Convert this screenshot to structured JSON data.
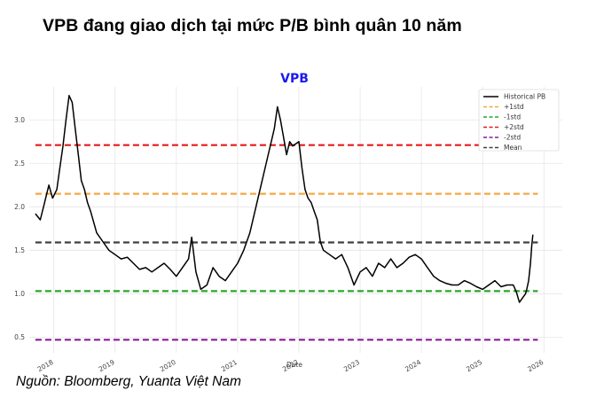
{
  "headline": "VPB đang giao dịch tại mức P/B bình quân 10 năm",
  "source": "Nguồn: Bloomberg, Yuanta Việt Nam",
  "chart_data": {
    "type": "line",
    "title": "VPB",
    "xlabel": "Date",
    "ylabel": "",
    "xlim": [
      2017.6,
      2026.3
    ],
    "ylim": [
      0.32,
      3.38
    ],
    "x_ticks": [
      "2018",
      "2019",
      "2020",
      "2021",
      "2022",
      "2023",
      "2024",
      "2025",
      "2026"
    ],
    "y_ticks": [
      "0.5",
      "1.0",
      "1.5",
      "2.0",
      "2.5",
      "3.0"
    ],
    "grid": true,
    "legend_position": "top-right",
    "series": [
      {
        "name": "Historical PB",
        "color": "#000000",
        "style": "solid",
        "x": [
          2017.7,
          2017.78,
          2017.85,
          2017.92,
          2017.98,
          2018.05,
          2018.1,
          2018.15,
          2018.2,
          2018.25,
          2018.3,
          2018.35,
          2018.4,
          2018.45,
          2018.5,
          2018.55,
          2018.6,
          2018.7,
          2018.8,
          2018.9,
          2019.0,
          2019.1,
          2019.2,
          2019.3,
          2019.4,
          2019.5,
          2019.6,
          2019.7,
          2019.8,
          2019.9,
          2020.0,
          2020.1,
          2020.2,
          2020.25,
          2020.32,
          2020.4,
          2020.5,
          2020.6,
          2020.7,
          2020.8,
          2020.9,
          2021.0,
          2021.1,
          2021.2,
          2021.3,
          2021.4,
          2021.5,
          2021.6,
          2021.65,
          2021.7,
          2021.75,
          2021.8,
          2021.85,
          2021.9,
          2022.0,
          2022.05,
          2022.1,
          2022.15,
          2022.2,
          2022.25,
          2022.3,
          2022.35,
          2022.4,
          2022.5,
          2022.6,
          2022.7,
          2022.8,
          2022.9,
          2023.0,
          2023.1,
          2023.2,
          2023.3,
          2023.4,
          2023.5,
          2023.6,
          2023.7,
          2023.8,
          2023.9,
          2024.0,
          2024.1,
          2024.2,
          2024.3,
          2024.4,
          2024.5,
          2024.6,
          2024.7,
          2024.8,
          2024.9,
          2025.0,
          2025.1,
          2025.2,
          2025.3,
          2025.4,
          2025.5,
          2025.55,
          2025.6,
          2025.65,
          2025.7,
          2025.72,
          2025.75,
          2025.78,
          2025.8,
          2025.82
        ],
        "values": [
          1.92,
          1.85,
          2.05,
          2.25,
          2.1,
          2.2,
          2.45,
          2.7,
          3.0,
          3.28,
          3.2,
          2.9,
          2.6,
          2.3,
          2.2,
          2.05,
          1.95,
          1.7,
          1.6,
          1.5,
          1.45,
          1.4,
          1.42,
          1.35,
          1.28,
          1.3,
          1.25,
          1.3,
          1.35,
          1.28,
          1.2,
          1.3,
          1.4,
          1.65,
          1.25,
          1.05,
          1.1,
          1.3,
          1.2,
          1.15,
          1.25,
          1.35,
          1.5,
          1.7,
          2.0,
          2.3,
          2.6,
          2.9,
          3.15,
          3.0,
          2.8,
          2.6,
          2.75,
          2.7,
          2.75,
          2.45,
          2.2,
          2.1,
          2.05,
          1.95,
          1.85,
          1.6,
          1.5,
          1.45,
          1.4,
          1.45,
          1.3,
          1.1,
          1.25,
          1.3,
          1.2,
          1.35,
          1.3,
          1.4,
          1.3,
          1.35,
          1.42,
          1.45,
          1.4,
          1.3,
          1.2,
          1.15,
          1.12,
          1.1,
          1.1,
          1.15,
          1.12,
          1.08,
          1.05,
          1.1,
          1.15,
          1.08,
          1.1,
          1.1,
          1.02,
          0.9,
          0.95,
          1.0,
          1.05,
          1.15,
          1.35,
          1.55,
          1.68
        ]
      },
      {
        "name": "+1std",
        "color": "#f5a742",
        "style": "dashed",
        "value": 2.15
      },
      {
        "name": "-1std",
        "color": "#2aa62a",
        "style": "dashed",
        "value": 1.03
      },
      {
        "name": "+2std",
        "color": "#e81818",
        "style": "dashed",
        "value": 2.71
      },
      {
        "name": "-2std",
        "color": "#8a1a9a",
        "style": "dashed",
        "value": 0.47
      },
      {
        "name": "Mean",
        "color": "#404040",
        "style": "dashed",
        "value": 1.59
      }
    ]
  }
}
